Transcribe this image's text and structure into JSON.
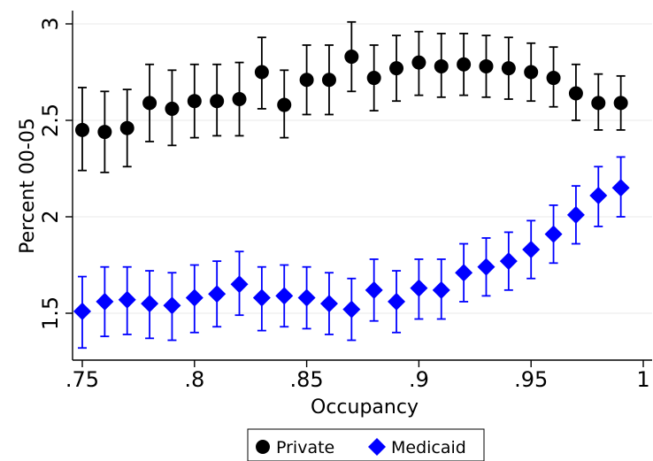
{
  "chart_data": {
    "type": "scatter",
    "xlabel": "Occupancy",
    "ylabel": "Percent 00-05",
    "xlim": [
      0.75,
      1.0
    ],
    "ylim": [
      1.3,
      3.1
    ],
    "xticks": [
      {
        "value": 0.75,
        "label": ".75"
      },
      {
        "value": 0.8,
        "label": ".8"
      },
      {
        "value": 0.85,
        "label": ".85"
      },
      {
        "value": 0.9,
        "label": ".9"
      },
      {
        "value": 0.95,
        "label": ".95"
      },
      {
        "value": 1.0,
        "label": "1"
      }
    ],
    "yticks": [
      {
        "value": 1.5,
        "label": "1.5"
      },
      {
        "value": 2.0,
        "label": "2"
      },
      {
        "value": 2.5,
        "label": "2.5"
      },
      {
        "value": 3.0,
        "label": "3"
      }
    ],
    "grid": true,
    "legend_position": "bottom",
    "x": [
      0.75,
      0.76,
      0.77,
      0.78,
      0.79,
      0.8,
      0.81,
      0.82,
      0.83,
      0.84,
      0.85,
      0.86,
      0.87,
      0.88,
      0.89,
      0.9,
      0.91,
      0.92,
      0.93,
      0.94,
      0.95,
      0.96,
      0.97,
      0.98,
      0.99
    ],
    "series": [
      {
        "name": "Private",
        "marker": "circle",
        "color": "#000000",
        "values": [
          2.45,
          2.44,
          2.46,
          2.59,
          2.56,
          2.6,
          2.6,
          2.61,
          2.75,
          2.58,
          2.71,
          2.71,
          2.83,
          2.72,
          2.77,
          2.8,
          2.78,
          2.79,
          2.78,
          2.77,
          2.75,
          2.72,
          2.64,
          2.59,
          2.59
        ],
        "lower": [
          2.24,
          2.23,
          2.26,
          2.39,
          2.37,
          2.41,
          2.42,
          2.42,
          2.56,
          2.41,
          2.53,
          2.53,
          2.65,
          2.55,
          2.6,
          2.63,
          2.62,
          2.63,
          2.62,
          2.61,
          2.6,
          2.57,
          2.5,
          2.45,
          2.45
        ],
        "upper": [
          2.67,
          2.65,
          2.66,
          2.79,
          2.76,
          2.79,
          2.79,
          2.8,
          2.93,
          2.76,
          2.89,
          2.89,
          3.01,
          2.89,
          2.94,
          2.96,
          2.95,
          2.95,
          2.94,
          2.93,
          2.9,
          2.88,
          2.79,
          2.74,
          2.73
        ]
      },
      {
        "name": "Medicaid",
        "marker": "diamond",
        "color": "#0000ff",
        "values": [
          1.51,
          1.56,
          1.57,
          1.55,
          1.54,
          1.58,
          1.6,
          1.65,
          1.58,
          1.59,
          1.58,
          1.55,
          1.52,
          1.62,
          1.56,
          1.63,
          1.62,
          1.71,
          1.74,
          1.77,
          1.83,
          1.91,
          2.01,
          2.11,
          2.15
        ],
        "lower": [
          1.32,
          1.38,
          1.39,
          1.37,
          1.36,
          1.4,
          1.43,
          1.49,
          1.41,
          1.43,
          1.42,
          1.39,
          1.36,
          1.46,
          1.4,
          1.47,
          1.47,
          1.56,
          1.59,
          1.62,
          1.68,
          1.76,
          1.86,
          1.95,
          2.0
        ],
        "upper": [
          1.69,
          1.74,
          1.74,
          1.72,
          1.71,
          1.75,
          1.77,
          1.82,
          1.74,
          1.75,
          1.74,
          1.71,
          1.68,
          1.78,
          1.72,
          1.78,
          1.78,
          1.86,
          1.89,
          1.92,
          1.98,
          2.06,
          2.16,
          2.26,
          2.31
        ]
      }
    ]
  }
}
